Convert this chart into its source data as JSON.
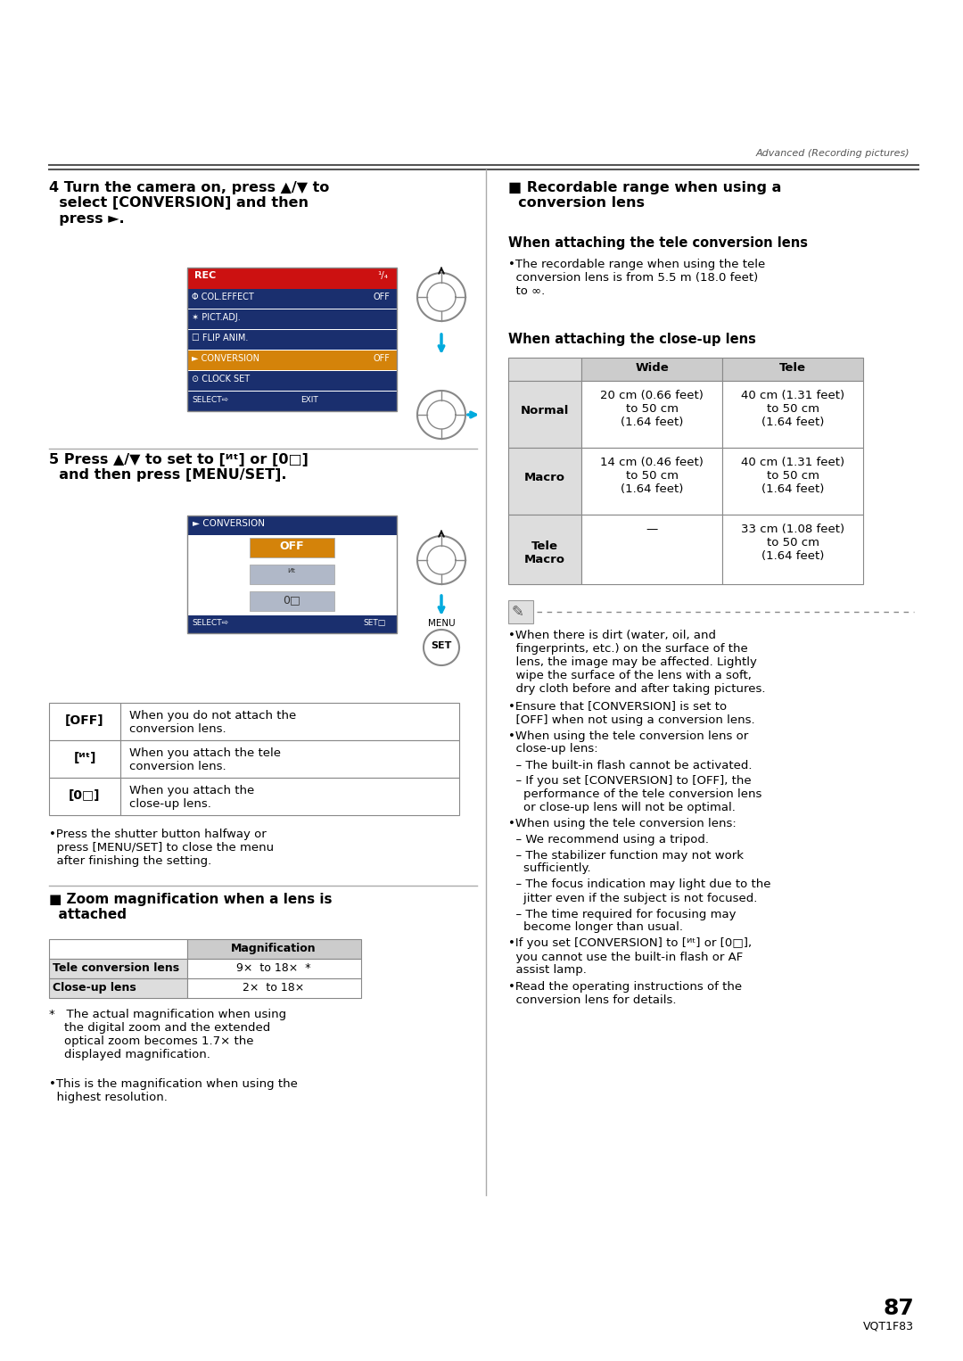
{
  "page_number": "87",
  "page_code": "VQT1F83",
  "header_text": "Advanced (Recording pictures)",
  "bg_color": "#ffffff",
  "step4_title": "4 Turn the camera on, press ▲/▼ to\n  select [CONVERSION] and then\n  press ►.",
  "step5_title": "5 Press ▲/▼ to set to [ᴻᵗ] or [0□]\n  and then press [MENU/SET].",
  "table1_rows": [
    [
      "[OFF]",
      "When you do not attach the\nconversion lens."
    ],
    [
      "[ᴻᵗ]",
      "When you attach the tele\nconversion lens."
    ],
    [
      "[0□]",
      "When you attach the\nclose-up lens."
    ]
  ],
  "bullet1": "•Press the shutter button halfway or\n  press [MENU/SET] to close the menu\n  after finishing the setting.",
  "zoom_section_title": "■ Zoom magnification when a lens is\n  attached",
  "zoom_table_rows": [
    [
      "Tele conversion lens",
      "9×  to 18×  *"
    ],
    [
      "Close-up lens",
      "2×  to 18×"
    ]
  ],
  "footnote_dagger": "*   The actual magnification when using\n    the digital zoom and the extended\n    optical zoom becomes 1.7× the\n    displayed magnification.",
  "footnote_bullet": "•This is the magnification when using the\n  highest resolution.",
  "right_section_title": "■ Recordable range when using a\n  conversion lens",
  "tele_heading": "When attaching the tele conversion lens",
  "tele_bullet": "•The recordable range when using the tele\n  conversion lens is from 5.5 m (18.0 feet)\n  to ∞.",
  "closeup_heading": "When attaching the close-up lens",
  "closeup_table_rows": [
    [
      "Normal",
      "20 cm (0.66 feet)\nto 50 cm\n(1.64 feet)",
      "40 cm (1.31 feet)\nto 50 cm\n(1.64 feet)"
    ],
    [
      "Macro",
      "14 cm (0.46 feet)\nto 50 cm\n(1.64 feet)",
      "40 cm (1.31 feet)\nto 50 cm\n(1.64 feet)"
    ],
    [
      "Tele\nMacro",
      "—",
      "33 cm (1.08 feet)\nto 50 cm\n(1.64 feet)"
    ]
  ],
  "note_bullets": [
    "•When there is dirt (water, oil, and\n  fingerprints, etc.) on the surface of the\n  lens, the image may be affected. Lightly\n  wipe the surface of the lens with a soft,\n  dry cloth before and after taking pictures.",
    "•Ensure that [CONVERSION] is set to\n  [OFF] when not using a conversion lens.",
    "•When using the tele conversion lens or\n  close-up lens:",
    "  – The built-in flash cannot be activated.",
    "  – If you set [CONVERSION] to [OFF], the\n    performance of the tele conversion lens\n    or close-up lens will not be optimal.",
    "•When using the tele conversion lens:",
    "  – We recommend using a tripod.",
    "  – The stabilizer function may not work\n    sufficiently.",
    "  – The focus indication may light due to the\n    jitter even if the subject is not focused.",
    "  – The time required for focusing may\n    become longer than usual.",
    "•If you set [CONVERSION] to [ᴻᵗ] or [0□],\n  you cannot use the built-in flash or AF\n  assist lamp.",
    "•Read the operating instructions of the\n  conversion lens for details."
  ]
}
